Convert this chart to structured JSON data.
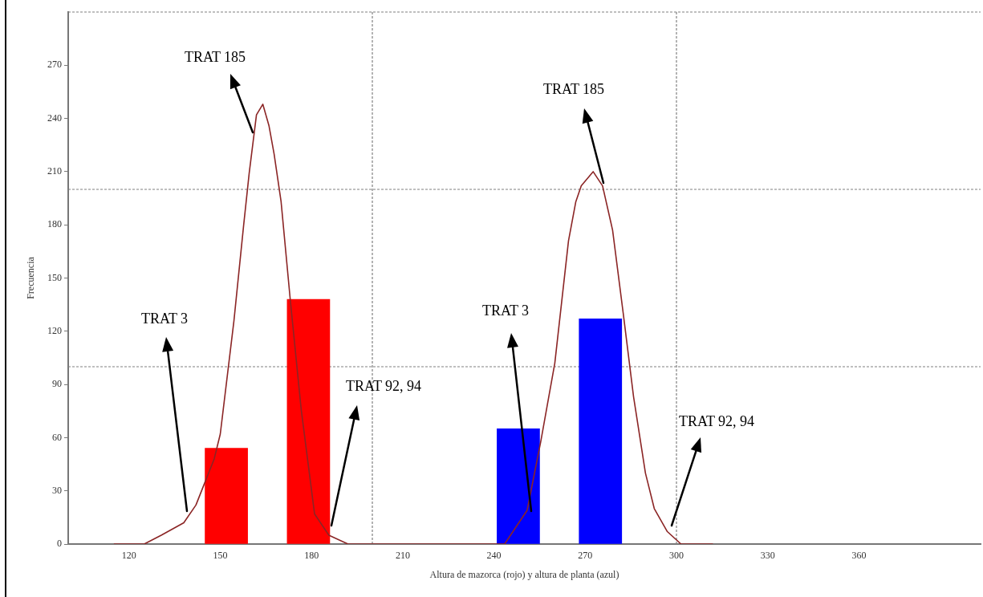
{
  "chart_data": {
    "type": "histogram",
    "xlabel": "Altura de mazorca (rojo) y altura de planta (azul)",
    "ylabel": "Frecuencia",
    "xlim": [
      100,
      400
    ],
    "xticks": [
      120,
      150,
      180,
      210,
      240,
      270,
      300,
      330,
      360
    ],
    "ylim": [
      0,
      300
    ],
    "yticks": [
      0,
      30,
      60,
      90,
      120,
      150,
      180,
      210,
      240,
      270
    ],
    "grid": false,
    "marker": "none",
    "series": [
      {
        "color": "#ff0000",
        "bins": [
          145,
          159,
          172,
          186
        ],
        "values": [
          54,
          null,
          138
        ]
      },
      {
        "color": "#0000ff",
        "bins": [
          241,
          255,
          268,
          282
        ],
        "values": [
          65,
          null,
          127
        ]
      },
      {
        "type": "line",
        "color": "#8b2525",
        "x": [
          115,
          125,
          130.6,
          138,
          142,
          148,
          150,
          154.5,
          157.7,
          159.5,
          161.9,
          164,
          166,
          167.7,
          170,
          173,
          176.6,
          181,
          185.7,
          192,
          243.5,
          250.9,
          255.4,
          260,
          264.5,
          266.9,
          268.7,
          272.6,
          275.7,
          279,
          282.5,
          285.9,
          289.8,
          292.7,
          297,
          301.5,
          312
        ],
        "values": [
          0,
          0,
          5,
          12,
          22,
          48,
          62,
          126,
          180,
          209,
          242,
          248,
          236,
          220,
          193,
          138,
          76,
          17,
          5,
          0,
          0,
          19,
          58,
          102,
          171,
          193,
          202,
          210,
          202,
          177,
          130,
          83,
          40,
          20,
          7,
          0,
          0
        ]
      }
    ],
    "ref_lines": [
      {
        "axis": "x",
        "value": 200,
        "color": "#808080",
        "line_style": "dashed"
      },
      {
        "axis": "x",
        "value": 300,
        "color": "#808080",
        "line_style": "dashed"
      },
      {
        "axis": "y",
        "value": 100,
        "color": "#808080",
        "line_style": "dashed"
      },
      {
        "axis": "y",
        "value": 200,
        "color": "#808080",
        "line_style": "dashed"
      }
    ],
    "annotations": [
      "TRAT 185",
      "TRAT 3",
      "TRAT 92, 94",
      "TRAT 3",
      "TRAT 185",
      "TRAT 92, 94"
    ]
  }
}
